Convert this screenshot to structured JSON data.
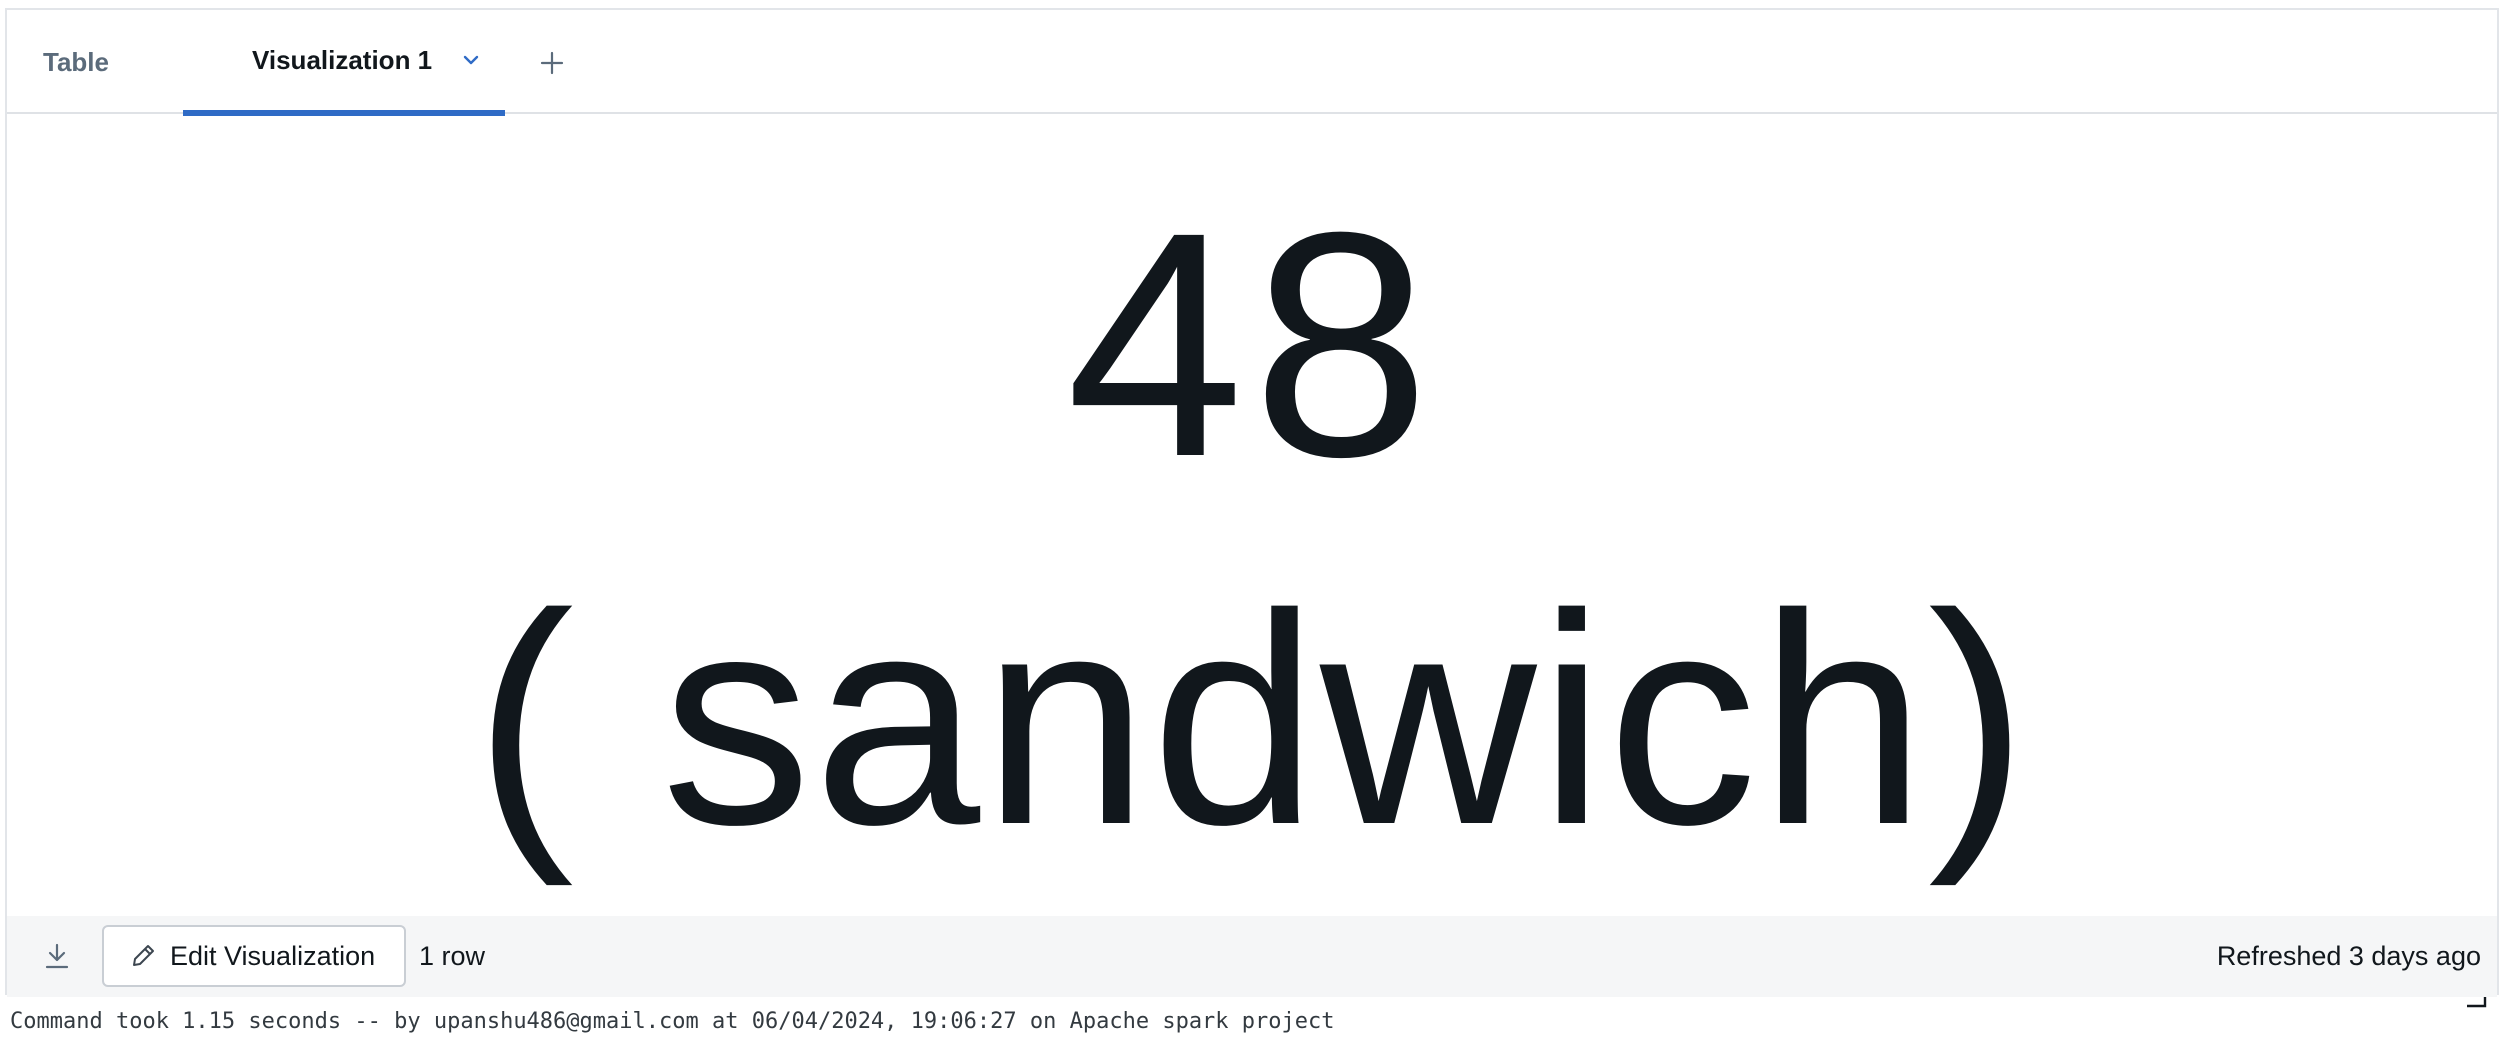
{
  "tabs": {
    "table_label": "Table",
    "visualization_label": "Visualization 1",
    "dropdown_icon": "chevron-down-icon",
    "add_icon": "plus-icon",
    "active_color": "#2f6bc6"
  },
  "counter": {
    "value": "48",
    "target": "( sandwich)"
  },
  "footer": {
    "download_icon": "download-icon",
    "edit_button_label": "Edit Visualization",
    "edit_icon": "pencil-icon",
    "row_count": "1 row",
    "refreshed": "Refreshed 3 days ago"
  },
  "command": {
    "text": "Command took 1.15 seconds -- by upanshu486@gmail.com at 06/04/2024, 19:06:27 on Apache spark project"
  }
}
